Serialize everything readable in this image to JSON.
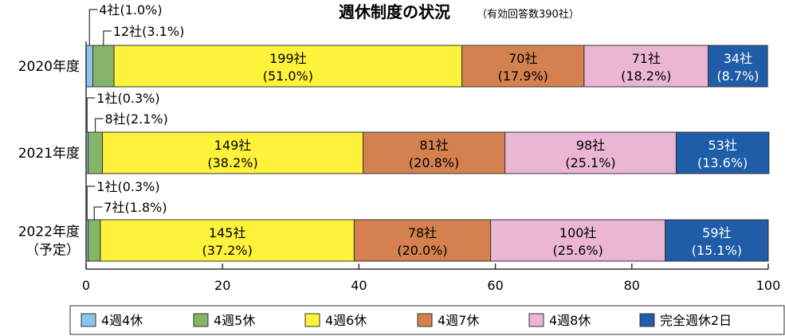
{
  "chart_data": {
    "type": "bar",
    "orientation": "horizontal",
    "stacked": true,
    "title": "週休制度の状況",
    "subtitle": "（有効回答数390社）",
    "categories": [
      "2020年度",
      "2021年度",
      "2022年度（予定）"
    ],
    "category_lines": [
      [
        "2020年度"
      ],
      [
        "2021年度"
      ],
      [
        "2022年度",
        "（予定）"
      ]
    ],
    "xlim": [
      0,
      100
    ],
    "xticks": [
      0,
      20,
      40,
      60,
      80,
      100
    ],
    "grid": false,
    "legend_position": "bottom",
    "series": [
      {
        "name": "4週4休",
        "color": "#8ec3ec",
        "values": [
          1.0,
          0.3,
          0.3
        ],
        "counts": [
          "4社",
          "1社",
          "1社"
        ],
        "percents": [
          "(1.0%)",
          "(0.3%)",
          "(0.3%)"
        ],
        "label_style": "callout"
      },
      {
        "name": "4週5休",
        "color": "#86b468",
        "values": [
          3.1,
          2.1,
          1.8
        ],
        "counts": [
          "12社",
          "8社",
          "7社"
        ],
        "percents": [
          "(3.1%)",
          "(2.1%)",
          "(1.8%)"
        ],
        "label_style": "callout"
      },
      {
        "name": "4週6休",
        "color": "#fff23b",
        "values": [
          51.0,
          38.2,
          37.2
        ],
        "counts": [
          "199社",
          "149社",
          "145社"
        ],
        "percents": [
          "(51.0%)",
          "(38.2%)",
          "(37.2%)"
        ],
        "label_style": "inside"
      },
      {
        "name": "4週7休",
        "color": "#d4814f",
        "values": [
          17.9,
          20.8,
          20.0
        ],
        "counts": [
          "70社",
          "81社",
          "78社"
        ],
        "percents": [
          "(17.9%)",
          "(20.8%)",
          "(20.0%)"
        ],
        "label_style": "inside"
      },
      {
        "name": "4週8休",
        "color": "#eab6d3",
        "values": [
          18.2,
          25.1,
          25.6
        ],
        "counts": [
          "71社",
          "98社",
          "100社"
        ],
        "percents": [
          "(18.2%)",
          "(25.1%)",
          "(25.6%)"
        ],
        "label_style": "inside"
      },
      {
        "name": "完全週休2日",
        "color": "#1f5da8",
        "values": [
          8.7,
          13.6,
          15.1
        ],
        "counts": [
          "34社",
          "53社",
          "59社"
        ],
        "percents": [
          "(8.7%)",
          "(13.6%)",
          "(15.1%)"
        ],
        "label_style": "inside-light"
      }
    ]
  }
}
